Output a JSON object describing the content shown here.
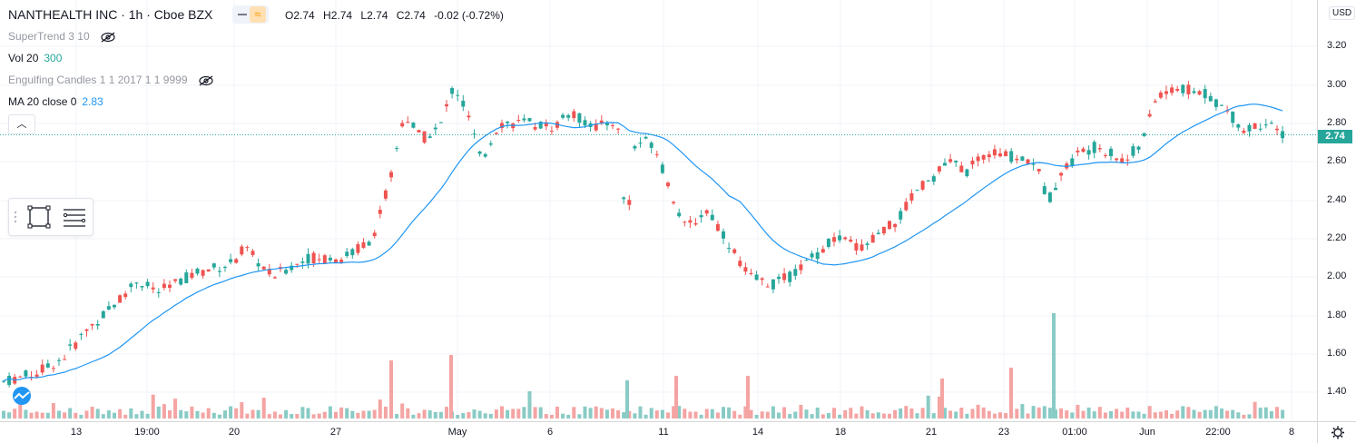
{
  "header": {
    "symbol": "NANTHEALTH INC · 1h · Cboe BZX",
    "ohlc": {
      "o": "O2.74",
      "h": "H2.74",
      "l": "L2.74",
      "c": "C2.74",
      "change": "-0.02 (-0.72%)"
    }
  },
  "indicators": [
    {
      "name": "SuperTrend 3 10",
      "value": "",
      "hidden": true
    },
    {
      "name": "Vol 20",
      "value": "300",
      "hidden": false
    },
    {
      "name": "Engulfing Candles 1 1 2017 1 1 9999",
      "value": "",
      "hidden": true
    },
    {
      "name": "MA 20 close 0",
      "value": "2.83",
      "hidden": false
    }
  ],
  "price_axis": {
    "currency": "USD",
    "ticks": [
      "3.20",
      "3.00",
      "2.80",
      "2.60",
      "2.40",
      "2.20",
      "2.00",
      "1.80",
      "1.60",
      "1.40"
    ],
    "current_price": "2.74"
  },
  "time_axis": {
    "labels": [
      "13",
      "19:00",
      "20",
      "27",
      "May",
      "6",
      "11",
      "14",
      "18",
      "21",
      "23",
      "01:00",
      "Jun",
      "22:00",
      "8"
    ]
  },
  "colors": {
    "up": "#26a69a",
    "down": "#ef5350",
    "ma": "#2196f3",
    "vol_up": "#89cbc5",
    "vol_down": "#f4a4a3",
    "grid": "#f0f3fa"
  },
  "chart_data": {
    "type": "candlestick",
    "ylim": [
      1.35,
      3.3
    ],
    "ma_last": 2.83,
    "last_close": 2.74
  }
}
